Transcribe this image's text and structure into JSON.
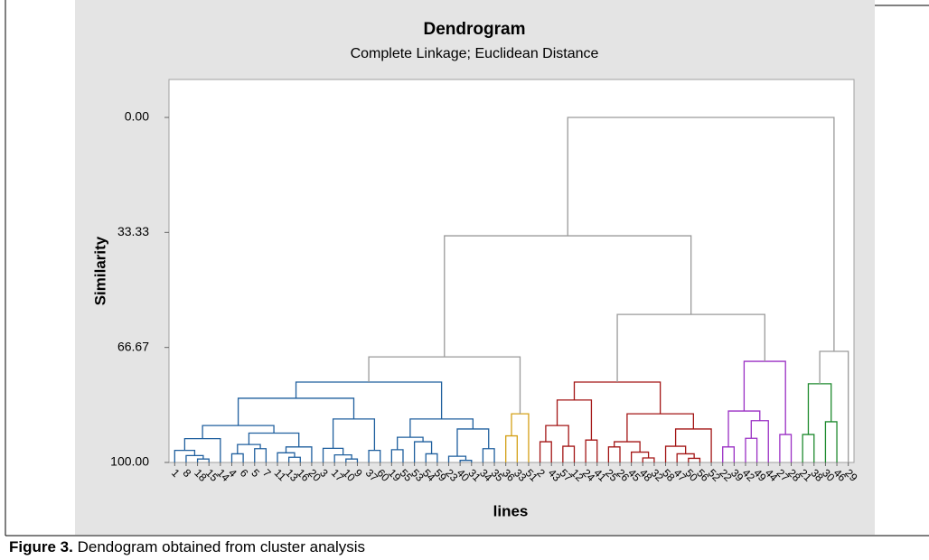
{
  "chart_data": {
    "type": "dendrogram",
    "title": "Dendrogram",
    "subtitle": "Complete Linkage; Euclidean Distance",
    "ylabel": "Similarity",
    "xlabel": "lines",
    "ylim": [
      100,
      -11
    ],
    "yticks": [
      {
        "value": 0,
        "label": "0.00"
      },
      {
        "value": 33.33,
        "label": "33.33"
      },
      {
        "value": 66.67,
        "label": "66.67"
      },
      {
        "value": 100,
        "label": "100.00"
      }
    ],
    "link_color": "#9a9a9a",
    "tree": {
      "similarity": 0,
      "children": [
        {
          "similarity": 34.3,
          "children": [
            {
              "similarity": 69.4,
              "children": [
                {
                  "similarity": 76.7,
                  "color": "#1f5f9e",
                  "children": [
                    {
                      "similarity": 81.4,
                      "children": [
                        {
                          "similarity": 89.3,
                          "children": [
                            {
                              "similarity": 93.1,
                              "children": [
                                {
                                  "similarity": 96.5,
                                  "children": [
                                    "1",
                                    {
                                      "similarity": 98.0,
                                      "children": [
                                        "8",
                                        {
                                          "similarity": 99.0,
                                          "children": [
                                            "18",
                                            "15"
                                          ]
                                        }
                                      ]
                                    }
                                  ]
                                },
                                "14"
                              ]
                            },
                            {
                              "similarity": 91.5,
                              "children": [
                                {
                                  "similarity": 94.8,
                                  "children": [
                                    {
                                      "similarity": 97.5,
                                      "children": [
                                        "4",
                                        "6"
                                      ]
                                    },
                                    {
                                      "similarity": 96.0,
                                      "children": [
                                        "5",
                                        "7"
                                      ]
                                    }
                                  ]
                                },
                                {
                                  "similarity": 95.5,
                                  "children": [
                                    {
                                      "similarity": 97.2,
                                      "children": [
                                        "11",
                                        {
                                          "similarity": 98.5,
                                          "children": [
                                            "13",
                                            "16"
                                          ]
                                        }
                                      ]
                                    },
                                    "20"
                                  ]
                                }
                              ]
                            }
                          ]
                        },
                        {
                          "similarity": 87.4,
                          "children": [
                            {
                              "similarity": 95.9,
                              "children": [
                                "3",
                                {
                                  "similarity": 97.8,
                                  "children": [
                                    "17",
                                    {
                                      "similarity": 99.0,
                                      "children": [
                                        "10",
                                        "9"
                                      ]
                                    }
                                  ]
                                }
                              ]
                            },
                            {
                              "similarity": 96.5,
                              "children": [
                                "37",
                                "60"
                              ]
                            }
                          ]
                        }
                      ]
                    },
                    {
                      "similarity": 87.4,
                      "children": [
                        {
                          "similarity": 92.7,
                          "children": [
                            {
                              "similarity": 96.3,
                              "children": [
                                "19",
                                "55"
                              ]
                            },
                            {
                              "similarity": 94.0,
                              "children": [
                                "53",
                                {
                                  "similarity": 97.5,
                                  "children": [
                                    "54",
                                    "59"
                                  ]
                                }
                              ]
                            }
                          ]
                        },
                        {
                          "similarity": 90.3,
                          "children": [
                            {
                              "similarity": 98.2,
                              "children": [
                                "23",
                                {
                                  "similarity": 99.4,
                                  "children": [
                                    "40",
                                    "31"
                                  ]
                                }
                              ]
                            },
                            {
                              "similarity": 96.0,
                              "children": [
                                "34",
                                "35"
                              ]
                            }
                          ]
                        }
                      ]
                    }
                  ]
                },
                {
                  "similarity": 85.9,
                  "color": "#d4a017",
                  "children": [
                    {
                      "similarity": 92.3,
                      "children": [
                        "36",
                        "33"
                      ]
                    },
                    "51"
                  ]
                }
              ]
            },
            {
              "similarity": 57.1,
              "children": [
                {
                  "similarity": 76.7,
                  "color": "#a31515",
                  "children": [
                    {
                      "similarity": 81.9,
                      "children": [
                        {
                          "similarity": 89.3,
                          "children": [
                            {
                              "similarity": 94.0,
                              "children": [
                                "2",
                                "43"
                              ]
                            },
                            {
                              "similarity": 95.3,
                              "children": [
                                "57",
                                "12"
                              ]
                            }
                          ]
                        },
                        {
                          "similarity": 93.5,
                          "children": [
                            "24",
                            "41"
                          ]
                        }
                      ]
                    },
                    {
                      "similarity": 85.9,
                      "children": [
                        {
                          "similarity": 94.0,
                          "children": [
                            {
                              "similarity": 95.5,
                              "children": [
                                "25",
                                "26"
                              ]
                            },
                            {
                              "similarity": 97.0,
                              "children": [
                                "45",
                                {
                                  "similarity": 98.7,
                                  "children": [
                                    "48",
                                    "32"
                                  ]
                                }
                              ]
                            }
                          ]
                        },
                        {
                          "similarity": 90.3,
                          "children": [
                            {
                              "similarity": 95.3,
                              "children": [
                                "58",
                                {
                                  "similarity": 97.5,
                                  "children": [
                                    "47",
                                    {
                                      "similarity": 98.8,
                                      "children": [
                                        "50",
                                        "56"
                                      ]
                                    }
                                  ]
                                }
                              ]
                            },
                            "52"
                          ]
                        }
                      ]
                    }
                  ]
                },
                {
                  "similarity": 70.7,
                  "color": "#9a2fc4",
                  "children": [
                    {
                      "similarity": 85.1,
                      "children": [
                        {
                          "similarity": 95.5,
                          "children": [
                            "22",
                            "39"
                          ]
                        },
                        {
                          "similarity": 87.9,
                          "children": [
                            {
                              "similarity": 93.0,
                              "children": [
                                "42",
                                "49"
                              ]
                            },
                            "44"
                          ]
                        }
                      ]
                    },
                    {
                      "similarity": 91.9,
                      "children": [
                        "27",
                        "28"
                      ]
                    }
                  ]
                }
              ]
            }
          ]
        },
        {
          "similarity": 67.8,
          "children": [
            {
              "similarity": 77.2,
              "color": "#1e8a2e",
              "children": [
                {
                  "similarity": 91.9,
                  "children": [
                    "21",
                    "38"
                  ]
                },
                {
                  "similarity": 88.2,
                  "children": [
                    "30",
                    "46"
                  ]
                }
              ]
            },
            "29"
          ]
        }
      ]
    }
  },
  "caption": {
    "label": "Figure 3.",
    "text": "Dendogram obtained from cluster analysis"
  }
}
